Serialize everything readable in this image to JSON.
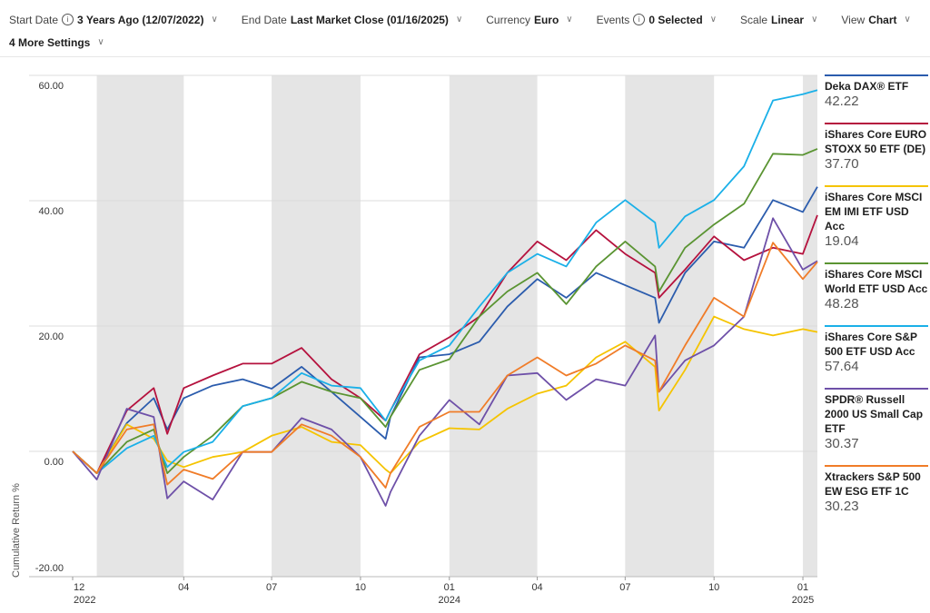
{
  "toolbar": {
    "start_date": {
      "label": "Start Date",
      "value": "3 Years Ago (12/07/2022)"
    },
    "end_date": {
      "label": "End Date",
      "value": "Last Market Close (01/16/2025)"
    },
    "currency": {
      "label": "Currency",
      "value": "Euro"
    },
    "events": {
      "label": "Events",
      "value": "0 Selected"
    },
    "scale": {
      "label": "Scale",
      "value": "Linear"
    },
    "view": {
      "label": "View",
      "value": "Chart"
    },
    "more_settings": "4 More Settings",
    "chevron_icon": "chevron-down-icon",
    "info_icon": "info-icon"
  },
  "chart_data": {
    "type": "line",
    "ylabel": "Cumulative Return %",
    "ylim": [
      -20,
      60
    ],
    "yticks": [
      "60.00",
      "40.00",
      "20.00",
      "0.00",
      "-20.00"
    ],
    "ytick_values": [
      60,
      40,
      20,
      0,
      -20
    ],
    "xlim": [
      "2022-12-07",
      "2025-01-16"
    ],
    "xticks": [
      {
        "date": "2022-12-07",
        "label": "12",
        "year": "2022"
      },
      {
        "date": "2023-04-01",
        "label": "04"
      },
      {
        "date": "2023-07-01",
        "label": "07"
      },
      {
        "date": "2023-10-01",
        "label": "10"
      },
      {
        "date": "2024-01-01",
        "label": "01",
        "year": "2024"
      },
      {
        "date": "2024-04-01",
        "label": "04"
      },
      {
        "date": "2024-07-01",
        "label": "07"
      },
      {
        "date": "2024-10-01",
        "label": "10"
      },
      {
        "date": "2025-01-01",
        "label": "01",
        "year": "2025"
      }
    ],
    "shaded_periods": [
      [
        "2023-01-01",
        "2023-04-01"
      ],
      [
        "2023-07-01",
        "2023-10-01"
      ],
      [
        "2024-01-01",
        "2024-04-01"
      ],
      [
        "2024-07-01",
        "2024-10-01"
      ],
      [
        "2025-01-01",
        "2025-01-16"
      ]
    ],
    "grid": true,
    "legend_placement": "right",
    "x": [
      "2022-12-07",
      "2023-01-01",
      "2023-02-01",
      "2023-03-01",
      "2023-03-15",
      "2023-04-01",
      "2023-05-01",
      "2023-06-01",
      "2023-07-01",
      "2023-08-01",
      "2023-09-01",
      "2023-10-01",
      "2023-10-27",
      "2023-11-01",
      "2023-12-01",
      "2024-01-01",
      "2024-02-01",
      "2024-03-01",
      "2024-04-01",
      "2024-05-01",
      "2024-06-01",
      "2024-07-01",
      "2024-08-01",
      "2024-08-05",
      "2024-09-01",
      "2024-10-01",
      "2024-11-01",
      "2024-12-01",
      "2025-01-01",
      "2025-01-16"
    ],
    "series": [
      {
        "name": "Deka DAX® ETF",
        "last": "42.22",
        "color": "#2b5cad",
        "values": [
          0,
          -3.5,
          4.5,
          8.5,
          3.5,
          8.5,
          10.5,
          11.5,
          10,
          13.5,
          9.5,
          5.5,
          2,
          5.5,
          15,
          15.5,
          17.5,
          23.1,
          27.5,
          24.5,
          28.5,
          26.5,
          24.5,
          20.5,
          28.5,
          33.5,
          32.5,
          40.1,
          38.2,
          42.22
        ]
      },
      {
        "name": "iShares Core EURO STOXX 50 ETF (DE)",
        "last": "37.70",
        "color": "#b5123e",
        "values": [
          0,
          -3.5,
          6.5,
          10.1,
          2.8,
          10.1,
          12.1,
          14,
          14,
          16.5,
          11.5,
          8.5,
          4.9,
          6.5,
          15.5,
          18.2,
          21.5,
          28.5,
          33.5,
          30.5,
          35.3,
          31.5,
          28.5,
          24.5,
          29,
          34.3,
          30.5,
          32.5,
          31.5,
          37.7
        ]
      },
      {
        "name": "iShares Core MSCI EM IMI ETF USD Acc",
        "last": "19.04",
        "color": "#f5c400",
        "values": [
          0,
          -3.5,
          4.3,
          2,
          -1.5,
          -2.5,
          -0.9,
          -0.1,
          2.5,
          3.9,
          1.5,
          1,
          -2.9,
          -3.5,
          1.5,
          3.7,
          3.5,
          6.8,
          9.2,
          10.5,
          15,
          17.5,
          13.5,
          6.5,
          13,
          21.5,
          19.5,
          18.5,
          19.5,
          19.04
        ]
      },
      {
        "name": "iShares Core MSCI World ETF USD Acc",
        "last": "48.28",
        "color": "#5a9432",
        "values": [
          0,
          -3.5,
          1.5,
          3.5,
          -3.5,
          -0.9,
          2.5,
          7.2,
          8.5,
          11.1,
          9.5,
          8.5,
          3.9,
          5.5,
          13,
          14.7,
          21.5,
          25.5,
          28.5,
          23.5,
          29.5,
          33.5,
          29.5,
          25.5,
          32.5,
          36.2,
          39.5,
          47.5,
          47.3,
          48.28
        ]
      },
      {
        "name": "iShares Core S&P 500 ETF USD Acc",
        "last": "57.64",
        "color": "#1ab0e8",
        "values": [
          0,
          -3.5,
          0.5,
          2.5,
          -2.5,
          -0.1,
          1.5,
          7.2,
          8.5,
          12.5,
          10.5,
          10.1,
          4.9,
          6.5,
          14.5,
          16.9,
          23.1,
          28.5,
          31.5,
          29.5,
          36.5,
          40.1,
          36.5,
          32.5,
          37.5,
          40.1,
          45.5,
          56,
          57,
          57.64
        ]
      },
      {
        "name": "SPDR® Russell 2000 US Small Cap ETF",
        "last": "30.37",
        "color": "#6e50a8",
        "values": [
          0,
          -4.5,
          6.8,
          5.5,
          -7.5,
          -4.8,
          -7.7,
          -0.1,
          -0.1,
          5.3,
          3.5,
          -0.9,
          -8.7,
          -6.5,
          2.5,
          8.2,
          4.3,
          12.1,
          12.5,
          8.2,
          11.5,
          10.5,
          18.5,
          9.5,
          14.5,
          16.9,
          21.5,
          37.2,
          29,
          30.37
        ]
      },
      {
        "name": "Xtrackers S&P 500 EW ESG ETF 1C",
        "last": "30.23",
        "color": "#f07c28",
        "values": [
          0,
          -3.5,
          3.5,
          4.3,
          -5.3,
          -2.9,
          -4.4,
          -0.1,
          -0.1,
          4.3,
          2.5,
          -0.9,
          -5.8,
          -3.5,
          3.9,
          6.3,
          6.3,
          12.1,
          15,
          12.1,
          14,
          16.9,
          14.5,
          9.5,
          16.9,
          24.5,
          21.5,
          33.3,
          27.5,
          30.23
        ]
      }
    ]
  }
}
